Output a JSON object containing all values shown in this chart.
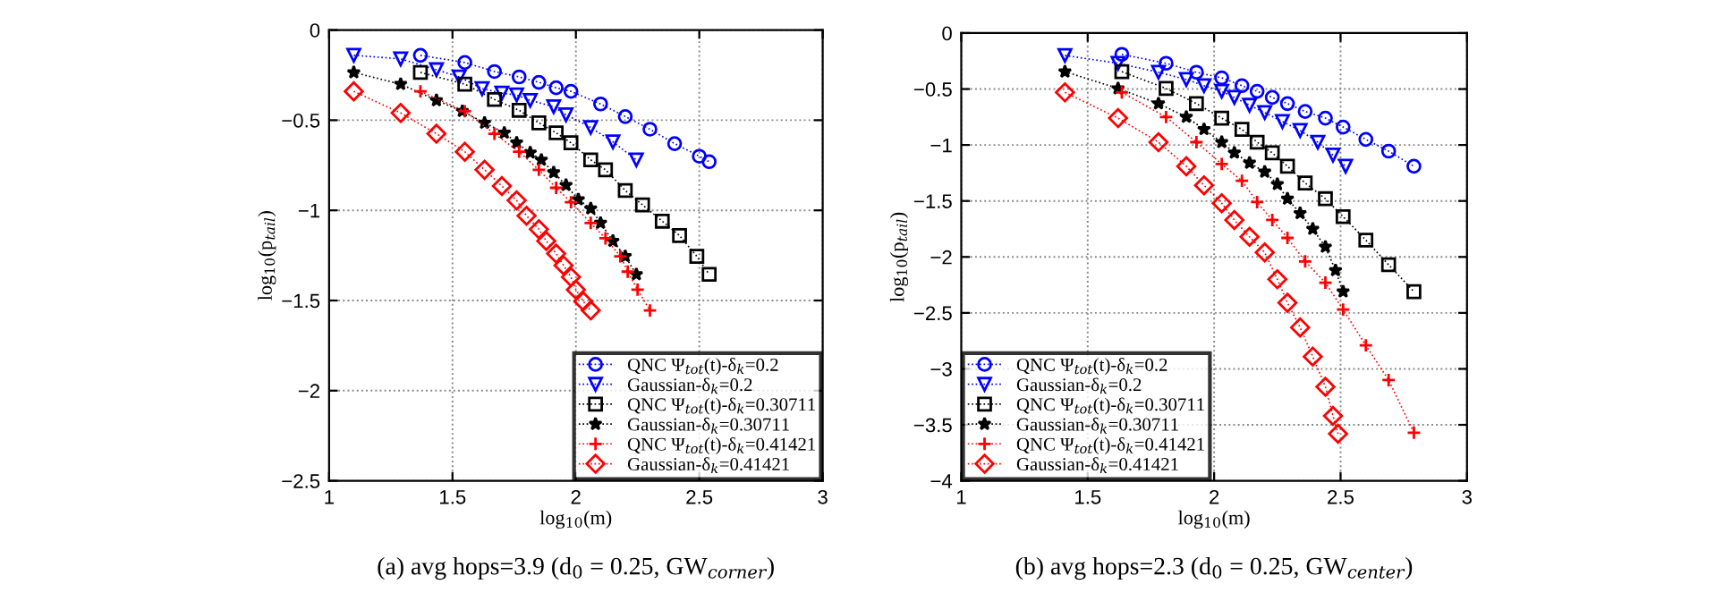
{
  "chart_data": [
    {
      "type": "line",
      "xlabel": "log$_{10}$(m)",
      "ylabel": "log$_{10}$(p$_{tail}$)",
      "xlim": [
        1,
        3
      ],
      "ylim": [
        -2.5,
        0
      ],
      "xticks": [
        1,
        1.5,
        2,
        2.5,
        3
      ],
      "yticks": [
        {
          "value": -2.5,
          "label": "−2.5"
        },
        {
          "value": -2,
          "label": "−2"
        },
        {
          "value": -1.5,
          "label": "−1.5"
        },
        {
          "value": -1,
          "label": "−1"
        },
        {
          "value": -0.5,
          "label": "−0.5"
        },
        0
      ],
      "grid": true,
      "legend": "bottom right",
      "line_style": "dotted",
      "annotations": [
        "(a) avg hops=3.9 (d$_{0}$ = 0.25, GW$_{corner}$)"
      ],
      "series": [
        {
          "name": "QNC Ψ$_{tot}$(t)-δ$_{k}$=0.2",
          "color": "#0000ff",
          "marker": "circle",
          "x": [
            1.37,
            1.55,
            1.67,
            1.77,
            1.85,
            1.92,
            1.98,
            2.1,
            2.2,
            2.3,
            2.4,
            2.5,
            2.54
          ],
          "values": [
            -0.14,
            -0.18,
            -0.23,
            -0.26,
            -0.29,
            -0.32,
            -0.34,
            -0.41,
            -0.48,
            -0.55,
            -0.63,
            -0.7,
            -0.73
          ]
        },
        {
          "name": "Gaussian-δ$_{k}$=0.2",
          "color": "#0000ff",
          "marker": "triangle",
          "x": [
            1.1,
            1.29,
            1.435,
            1.527,
            1.62,
            1.7,
            1.76,
            1.815,
            1.91,
            1.96,
            2.06,
            2.15,
            2.245
          ],
          "values": [
            -0.14,
            -0.16,
            -0.22,
            -0.26,
            -0.325,
            -0.35,
            -0.36,
            -0.39,
            -0.425,
            -0.47,
            -0.54,
            -0.62,
            -0.72
          ]
        },
        {
          "name": "QNC Ψ$_{tot}$(t)-δ$_{k}$=0.30711",
          "color": "#000000",
          "marker": "square",
          "x": [
            1.37,
            1.55,
            1.67,
            1.77,
            1.85,
            1.92,
            1.98,
            2.06,
            2.12,
            2.2,
            2.27,
            2.35,
            2.42,
            2.49,
            2.54
          ],
          "values": [
            -0.235,
            -0.3,
            -0.385,
            -0.445,
            -0.515,
            -0.57,
            -0.625,
            -0.72,
            -0.775,
            -0.89,
            -0.97,
            -1.06,
            -1.14,
            -1.255,
            -1.355
          ]
        },
        {
          "name": "Gaussian-δ$_{k}$=0.30711",
          "color": "#000000",
          "marker": "star",
          "x": [
            1.1,
            1.29,
            1.435,
            1.54,
            1.63,
            1.71,
            1.76,
            1.815,
            1.86,
            1.91,
            1.96,
            2.01,
            2.06,
            2.1,
            2.15,
            2.2,
            2.245
          ],
          "values": [
            -0.235,
            -0.3,
            -0.39,
            -0.45,
            -0.515,
            -0.57,
            -0.625,
            -0.68,
            -0.72,
            -0.79,
            -0.86,
            -0.94,
            -0.99,
            -1.07,
            -1.17,
            -1.255,
            -1.355
          ]
        },
        {
          "name": "QNC Ψ$_{tot}$(t)-δ$_{k}$=0.41421",
          "color": "#ff0000",
          "marker": "cross",
          "x": [
            1.37,
            1.55,
            1.67,
            1.77,
            1.85,
            1.92,
            1.98,
            2.06,
            2.12,
            2.18,
            2.21,
            2.25,
            2.3
          ],
          "values": [
            -0.34,
            -0.45,
            -0.575,
            -0.675,
            -0.775,
            -0.875,
            -0.955,
            -1.07,
            -1.155,
            -1.255,
            -1.34,
            -1.44,
            -1.555
          ]
        },
        {
          "name": "Gaussian-δ$_{k}$=0.41421",
          "color": "#ff0000",
          "marker": "diamond",
          "x": [
            1.1,
            1.29,
            1.435,
            1.55,
            1.63,
            1.7,
            1.76,
            1.8,
            1.85,
            1.88,
            1.92,
            1.95,
            1.98,
            2.0,
            2.03,
            2.06
          ],
          "values": [
            -0.34,
            -0.46,
            -0.575,
            -0.675,
            -0.775,
            -0.865,
            -0.945,
            -1.03,
            -1.105,
            -1.17,
            -1.24,
            -1.305,
            -1.37,
            -1.44,
            -1.505,
            -1.555
          ]
        }
      ]
    },
    {
      "type": "line",
      "xlabel": "log$_{10}$(m)",
      "ylabel": "log$_{10}$(p$_{tail}$)",
      "xlim": [
        1,
        3
      ],
      "ylim": [
        -4,
        0
      ],
      "xticks": [
        1,
        1.5,
        2,
        2.5,
        3
      ],
      "yticks": [
        {
          "value": -4,
          "label": "−4"
        },
        {
          "value": -3.5,
          "label": "−3.5"
        },
        {
          "value": -3,
          "label": "−3"
        },
        {
          "value": -2.5,
          "label": "−2.5"
        },
        {
          "value": -2,
          "label": "−2"
        },
        {
          "value": -1.5,
          "label": "−1.5"
        },
        {
          "value": -1,
          "label": "−1"
        },
        {
          "value": -0.5,
          "label": "−0.5"
        },
        0
      ],
      "grid": true,
      "legend": "bottom left",
      "line_style": "dotted",
      "annotations": [
        "(b) avg hops=2.3 (d$_{0}$ = 0.25, GW$_{center}$)"
      ],
      "series": [
        {
          "name": "QNC Ψ$_{tot}$(t)-δ$_{k}$=0.2",
          "color": "#0000ff",
          "marker": "circle",
          "x": [
            1.635,
            1.81,
            1.93,
            2.03,
            2.11,
            2.17,
            2.23,
            2.29,
            2.36,
            2.44,
            2.51,
            2.6,
            2.69,
            2.79
          ],
          "values": [
            -0.19,
            -0.27,
            -0.35,
            -0.4,
            -0.47,
            -0.52,
            -0.575,
            -0.63,
            -0.7,
            -0.76,
            -0.84,
            -0.95,
            -1.055,
            -1.19
          ]
        },
        {
          "name": "Gaussian-δ$_{k}$=0.2",
          "color": "#0000ff",
          "marker": "triangle",
          "x": [
            1.41,
            1.62,
            1.78,
            1.89,
            1.96,
            2.03,
            2.08,
            2.14,
            2.2,
            2.27,
            2.34,
            2.41,
            2.47,
            2.52
          ],
          "values": [
            -0.2,
            -0.27,
            -0.35,
            -0.415,
            -0.47,
            -0.52,
            -0.575,
            -0.645,
            -0.71,
            -0.79,
            -0.87,
            -0.975,
            -1.09,
            -1.19
          ]
        },
        {
          "name": "QNC Ψ$_{tot}$(t)-δ$_{k}$=0.30711",
          "color": "#000000",
          "marker": "square",
          "x": [
            1.635,
            1.81,
            1.93,
            2.03,
            2.11,
            2.17,
            2.23,
            2.29,
            2.36,
            2.44,
            2.51,
            2.6,
            2.69,
            2.79
          ],
          "values": [
            -0.345,
            -0.495,
            -0.63,
            -0.76,
            -0.86,
            -0.975,
            -1.07,
            -1.19,
            -1.34,
            -1.48,
            -1.64,
            -1.85,
            -2.07,
            -2.31
          ]
        },
        {
          "name": "Gaussian-δ$_{k}$=0.30711",
          "color": "#000000",
          "marker": "star",
          "x": [
            1.41,
            1.62,
            1.78,
            1.89,
            1.96,
            2.03,
            2.08,
            2.14,
            2.2,
            2.25,
            2.29,
            2.34,
            2.39,
            2.44,
            2.48,
            2.51
          ],
          "values": [
            -0.345,
            -0.495,
            -0.63,
            -0.75,
            -0.86,
            -0.975,
            -1.07,
            -1.16,
            -1.24,
            -1.35,
            -1.48,
            -1.61,
            -1.75,
            -1.91,
            -2.12,
            -2.31
          ]
        },
        {
          "name": "QNC Ψ$_{tot}$(t)-δ$_{k}$=0.41421",
          "color": "#ff0000",
          "marker": "cross",
          "x": [
            1.635,
            1.81,
            1.93,
            2.03,
            2.11,
            2.17,
            2.23,
            2.29,
            2.36,
            2.44,
            2.51,
            2.6,
            2.69,
            2.79
          ],
          "values": [
            -0.53,
            -0.75,
            -0.975,
            -1.17,
            -1.32,
            -1.51,
            -1.67,
            -1.83,
            -2.04,
            -2.23,
            -2.47,
            -2.79,
            -3.1,
            -3.57
          ]
        },
        {
          "name": "Gaussian-δ$_{k}$=0.41421",
          "color": "#ff0000",
          "marker": "diamond",
          "x": [
            1.41,
            1.62,
            1.78,
            1.89,
            1.96,
            2.03,
            2.08,
            2.14,
            2.2,
            2.25,
            2.29,
            2.34,
            2.39,
            2.44,
            2.47,
            2.49
          ],
          "values": [
            -0.53,
            -0.76,
            -0.975,
            -1.19,
            -1.36,
            -1.52,
            -1.67,
            -1.82,
            -1.96,
            -2.2,
            -2.41,
            -2.63,
            -2.89,
            -3.16,
            -3.42,
            -3.58
          ]
        }
      ]
    }
  ]
}
